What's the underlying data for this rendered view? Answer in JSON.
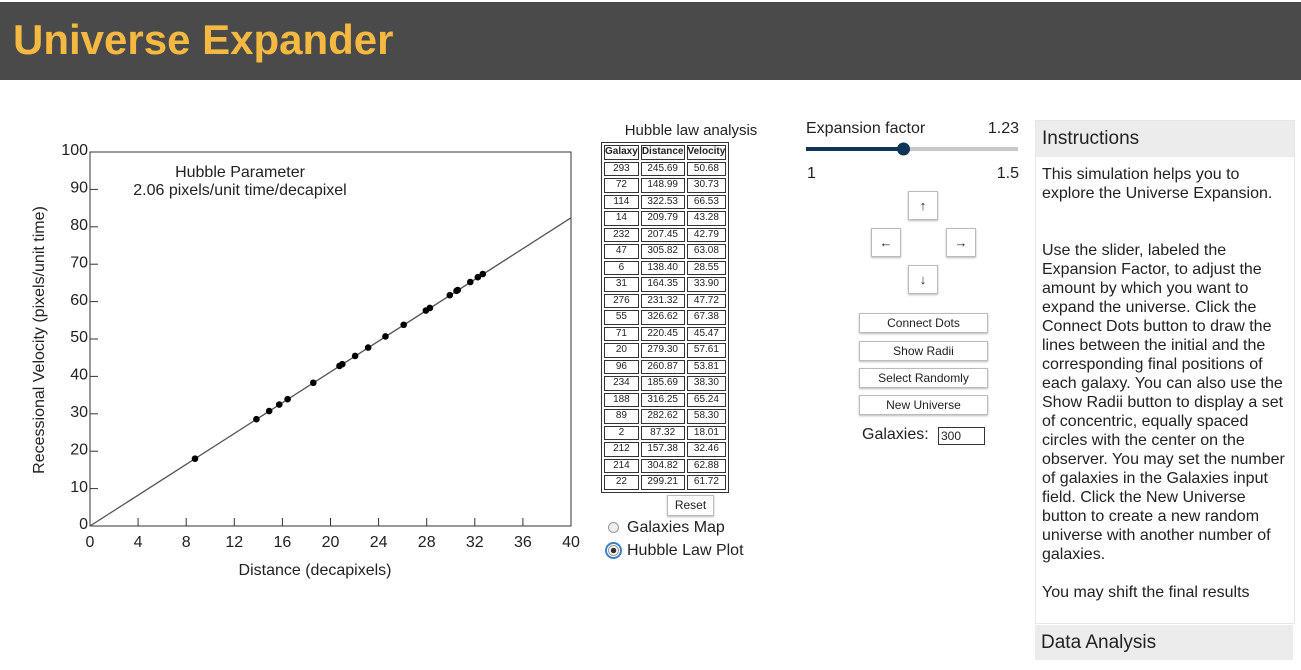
{
  "header": {
    "title": "Universe Expander"
  },
  "chart_data": {
    "type": "scatter",
    "annotation_title": "Hubble Parameter",
    "annotation_text": "2.06 pixels/unit time/decapixel",
    "x_label": "Distance (decapixels)",
    "y_label": "Recessional Velocity (pixels/unit time)",
    "xlim": [
      0,
      40
    ],
    "xticks": [
      0,
      4,
      8,
      12,
      16,
      20,
      24,
      28,
      32,
      36,
      40
    ],
    "ylim": [
      0,
      100
    ],
    "yticks": [
      0,
      10,
      20,
      30,
      40,
      50,
      60,
      70,
      80,
      90,
      100
    ],
    "color": "#000000",
    "x": [
      24.569,
      14.899,
      32.253,
      20.979,
      20.745,
      30.582,
      13.84,
      16.435,
      23.132,
      32.662,
      22.045,
      27.93,
      26.087,
      18.569,
      31.625,
      28.262,
      8.732,
      15.738,
      30.482,
      29.921
    ],
    "values": [
      50.68,
      30.73,
      66.53,
      43.28,
      42.79,
      63.08,
      28.55,
      33.9,
      47.72,
      67.38,
      45.47,
      57.61,
      53.81,
      38.3,
      65.24,
      58.3,
      18.01,
      32.46,
      62.88,
      61.72
    ],
    "fit_line": {
      "x": [
        0,
        40
      ],
      "values": [
        0,
        82.4
      ],
      "color": "#555555"
    }
  },
  "table": {
    "title": "Hubble law analysis",
    "columns": [
      "Galaxy",
      "Distance",
      "Velocity"
    ],
    "rows": [
      [
        "293",
        "245.69",
        "50.68"
      ],
      [
        "72",
        "148.99",
        "30.73"
      ],
      [
        "114",
        "322.53",
        "66.53"
      ],
      [
        "14",
        "209.79",
        "43.28"
      ],
      [
        "232",
        "207.45",
        "42.79"
      ],
      [
        "47",
        "305.82",
        "63.08"
      ],
      [
        "6",
        "138.40",
        "28.55"
      ],
      [
        "31",
        "164.35",
        "33.90"
      ],
      [
        "276",
        "231.32",
        "47.72"
      ],
      [
        "55",
        "326.62",
        "67.38"
      ],
      [
        "71",
        "220.45",
        "45.47"
      ],
      [
        "20",
        "279.30",
        "57.61"
      ],
      [
        "96",
        "260.87",
        "53.81"
      ],
      [
        "234",
        "185.69",
        "38.30"
      ],
      [
        "188",
        "316.25",
        "65.24"
      ],
      [
        "89",
        "282.62",
        "58.30"
      ],
      [
        "2",
        "87.32",
        "18.01"
      ],
      [
        "212",
        "157.38",
        "32.46"
      ],
      [
        "214",
        "304.82",
        "62.88"
      ],
      [
        "22",
        "299.21",
        "61.72"
      ]
    ],
    "reset": "Reset",
    "radios": [
      {
        "label": "Galaxies Map",
        "checked": false
      },
      {
        "label": "Hubble Law Plot",
        "checked": true
      }
    ]
  },
  "controls": {
    "expansion_label": "Expansion factor",
    "expansion_value": 1.23,
    "slider_min": 1,
    "slider_max": 1.5,
    "arrows": [
      "↑",
      "←",
      "→",
      "↓"
    ],
    "buttons": [
      "Connect Dots",
      "Show Radii",
      "Select Randomly",
      "New Universe"
    ],
    "galaxies_label": "Galaxies:",
    "galaxies_value": "300"
  },
  "instructions": {
    "title": "Instructions",
    "paragraphs": [
      "This simulation helps you to explore the Universe Expansion.",
      "Use the slider, labeled the Expansion Factor, to adjust the amount by which you want to expand the universe. Click the Connect Dots button to draw the lines between the initial and the corresponding final positions of each galaxy. You can also use the Show Radii button to display a set of concentric, equally spaced circles with the center on the observer. You may set the number of galaxies in the Galaxies input field. Click the New Universe button to create a new random universe with another number of galaxies.",
      "You may shift the final results"
    ],
    "footer": "Data Analysis"
  }
}
